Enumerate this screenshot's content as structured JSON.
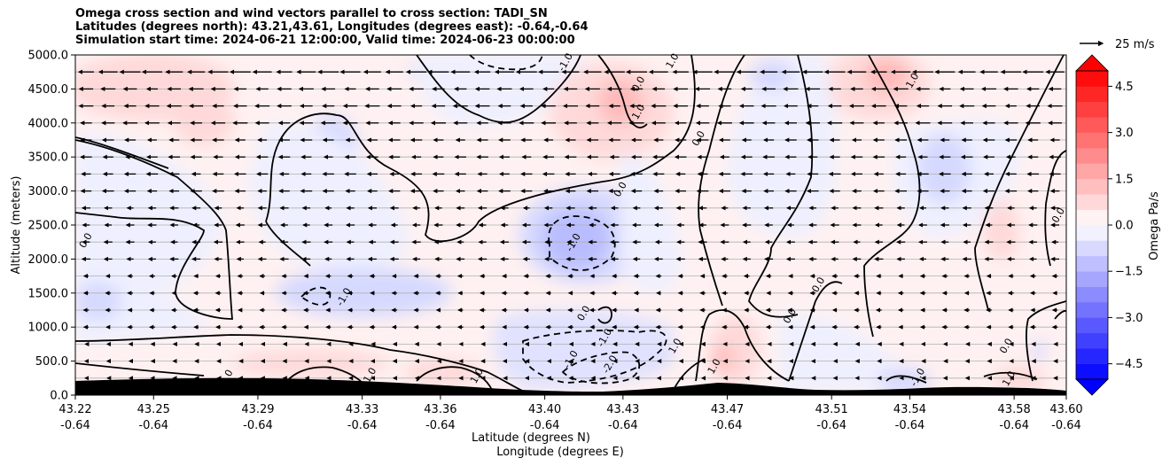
{
  "title_lines": [
    "Omega cross section and wind vectors parallel to cross section: TADI_SN",
    "Latitudes (degrees north): 43.21,43.61, Longitudes (degrees east): -0.64,-0.64",
    "Simulation start time: 2024-06-21 12:00:00, Valid time: 2024-06-23 00:00:00"
  ],
  "chart_data": {
    "type": "heatmap",
    "ylabel": "Altitude (meters)",
    "xlabel_line1": "Latitude (degrees N)",
    "xlabel_line2": "Longitude (degrees E)",
    "ylim": [
      0,
      5000
    ],
    "xlim": [
      43.22,
      43.6
    ],
    "y_ticks": [
      "0.0",
      "500.0",
      "1000.0",
      "1500.0",
      "2000.0",
      "2500.0",
      "3000.0",
      "3500.0",
      "4000.0",
      "4500.0",
      "5000.0"
    ],
    "x_ticks": [
      {
        "lat": "43.22",
        "lon": "-0.64"
      },
      {
        "lat": "43.25",
        "lon": "-0.64"
      },
      {
        "lat": "43.29",
        "lon": "-0.64"
      },
      {
        "lat": "43.33",
        "lon": "-0.64"
      },
      {
        "lat": "43.36",
        "lon": "-0.64"
      },
      {
        "lat": "43.40",
        "lon": "-0.64"
      },
      {
        "lat": "43.43",
        "lon": "-0.64"
      },
      {
        "lat": "43.47",
        "lon": "-0.64"
      },
      {
        "lat": "43.51",
        "lon": "-0.64"
      },
      {
        "lat": "43.54",
        "lon": "-0.64"
      },
      {
        "lat": "43.58",
        "lon": "-0.64"
      },
      {
        "lat": "43.60",
        "lon": "-0.64"
      }
    ],
    "grid": "horizontal lines every 250 m",
    "colorbar": {
      "label": "Omega Pa/s",
      "ticks": [
        "−4.5",
        "−3.0",
        "−1.5",
        "0.0",
        "1.5",
        "3.0",
        "4.5"
      ],
      "tick_values": [
        -4.5,
        -3.0,
        -1.5,
        0.0,
        1.5,
        3.0,
        4.5
      ],
      "range": [
        -5,
        5
      ],
      "extend": "both",
      "low_color": "#0000ff",
      "high_color": "#ff0000"
    },
    "quiver_key": {
      "label": "25 m/s",
      "speed": 25
    },
    "contour_labels": [
      {
        "text": "0.0",
        "lat": 43.225,
        "alt": 2250
      },
      {
        "text": "-1.0",
        "lat": 43.324,
        "alt": 1420
      },
      {
        "text": "1.0",
        "lat": 43.334,
        "alt": 270
      },
      {
        "text": "0.0",
        "lat": 43.279,
        "alt": 240
      },
      {
        "text": "1.0",
        "lat": 43.375,
        "alt": 260
      },
      {
        "text": "0.0",
        "lat": 43.416,
        "alt": 1180
      },
      {
        "text": "-1.0",
        "lat": 43.412,
        "alt": 2220
      },
      {
        "text": "0.0",
        "lat": 43.43,
        "alt": 3000
      },
      {
        "text": "1.0",
        "lat": 43.437,
        "alt": 4140
      },
      {
        "text": "0.0",
        "lat": 43.437,
        "alt": 4550
      },
      {
        "text": "-1.0",
        "lat": 43.409,
        "alt": 4870
      },
      {
        "text": "1.0",
        "lat": 43.45,
        "alt": 4890
      },
      {
        "text": "0.0",
        "lat": 43.46,
        "alt": 3750
      },
      {
        "text": "-1.0",
        "lat": 43.424,
        "alt": 820
      },
      {
        "text": "-1.0",
        "lat": 43.411,
        "alt": 500
      },
      {
        "text": "-2.0",
        "lat": 43.426,
        "alt": 430
      },
      {
        "text": "1.0",
        "lat": 43.451,
        "alt": 700
      },
      {
        "text": "1.0",
        "lat": 43.466,
        "alt": 400
      },
      {
        "text": "0.0",
        "lat": 43.495,
        "alt": 1140
      },
      {
        "text": "0.0",
        "lat": 43.506,
        "alt": 1600
      },
      {
        "text": "-1.0",
        "lat": 43.544,
        "alt": 240
      },
      {
        "text": "0.0",
        "lat": 43.578,
        "alt": 700
      },
      {
        "text": "1.0",
        "lat": 43.579,
        "alt": 220
      },
      {
        "text": "0.0",
        "lat": 43.598,
        "alt": 2620
      },
      {
        "text": "1.0",
        "lat": 43.542,
        "alt": 4600
      }
    ]
  }
}
